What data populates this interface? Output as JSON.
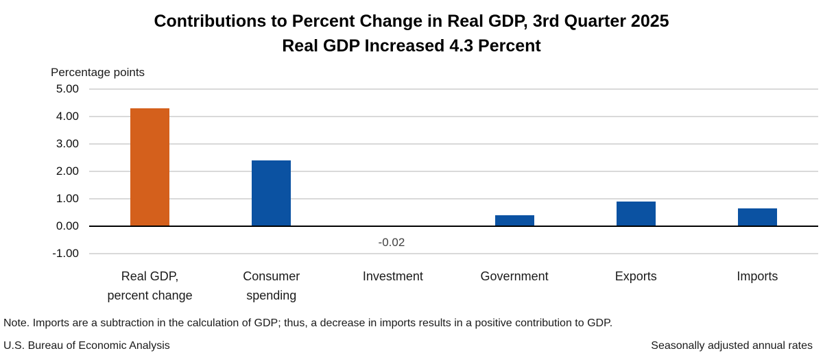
{
  "title": {
    "line1": "Contributions to Percent Change in Real GDP, 3rd Quarter 2025",
    "line2": "Real GDP Increased 4.3 Percent"
  },
  "y_axis": {
    "label": "Percentage points",
    "ticks": [
      "5.00",
      "4.00",
      "3.00",
      "2.00",
      "1.00",
      "0.00",
      "-1.00"
    ]
  },
  "chart_data": {
    "type": "bar",
    "title": "Contributions to Percent Change in Real GDP, 3rd Quarter 2025",
    "subtitle": "Real GDP Increased 4.3 Percent",
    "ylabel": "Percentage points",
    "ylim": [
      -1,
      5
    ],
    "grid": true,
    "legend": "none",
    "categories": [
      "Real GDP, percent change",
      "Consumer spending",
      "Investment",
      "Government",
      "Exports",
      "Imports"
    ],
    "category_lines": [
      [
        "Real GDP,",
        "percent change"
      ],
      [
        "Consumer",
        "spending"
      ],
      [
        "Investment"
      ],
      [
        "Government"
      ],
      [
        "Exports"
      ],
      [
        "Imports"
      ]
    ],
    "values": [
      4.3,
      2.4,
      -0.02,
      0.4,
      0.9,
      0.65
    ],
    "bar_colors": [
      "#D4601C",
      "#0B52A2",
      "#0B52A2",
      "#0B52A2",
      "#0B52A2",
      "#0B52A2"
    ],
    "data_labels": [
      null,
      null,
      "-0.02",
      null,
      null,
      null
    ]
  },
  "footer": {
    "note": "Note. Imports are a subtraction in the calculation of GDP; thus, a decrease in imports results in a positive contribution to GDP.",
    "source": "U.S. Bureau of Economic Analysis",
    "right_note": "Seasonally adjusted annual rates"
  },
  "colors": {
    "bar_orange": "#D4601C",
    "bar_blue": "#0B52A2",
    "gridline": "#D9D9D9",
    "zero_line": "#000000",
    "data_label_gray": "#404040"
  }
}
